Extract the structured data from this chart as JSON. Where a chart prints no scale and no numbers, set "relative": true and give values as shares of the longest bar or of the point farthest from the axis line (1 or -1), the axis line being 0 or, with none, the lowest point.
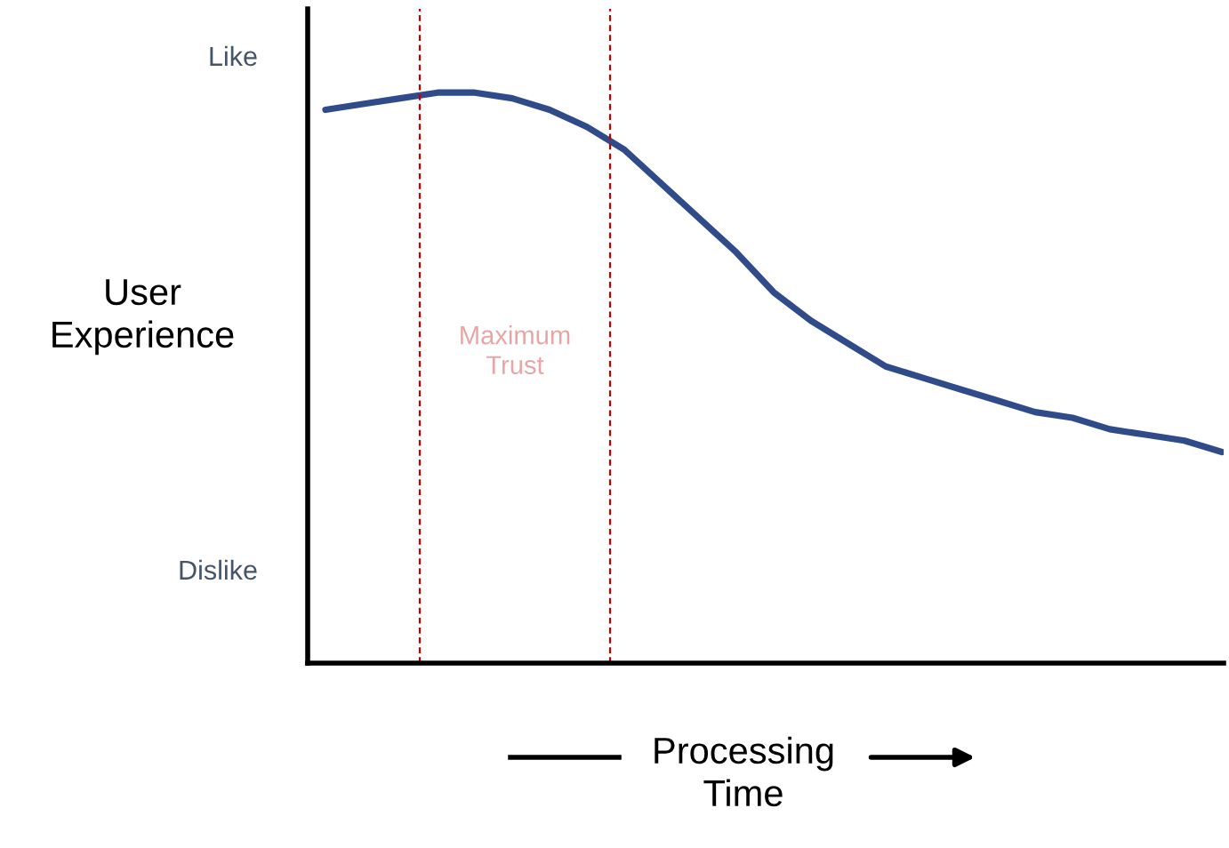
{
  "chart_data": {
    "type": "line",
    "relative": true,
    "ylabel": "User Experience",
    "xlabel": "Processing Time",
    "categories": [
      null,
      null,
      null,
      null,
      null,
      null,
      null,
      null,
      null,
      null,
      null,
      null,
      null,
      null,
      null,
      null,
      null,
      null,
      null,
      null,
      null,
      null,
      null,
      null,
      null
    ],
    "series": [
      {
        "color": "#2f4b8a",
        "values": [
          0.97,
          0.98,
          0.99,
          1.0,
          1.0,
          0.99,
          0.97,
          0.94,
          0.9,
          0.84,
          0.78,
          0.72,
          0.65,
          0.6,
          0.56,
          0.52,
          0.5,
          0.48,
          0.46,
          0.44,
          0.43,
          0.41,
          0.4,
          0.39,
          0.37
        ]
      }
    ],
    "annotations": [
      "Like",
      "Dislike",
      "Maximum Trust"
    ]
  }
}
